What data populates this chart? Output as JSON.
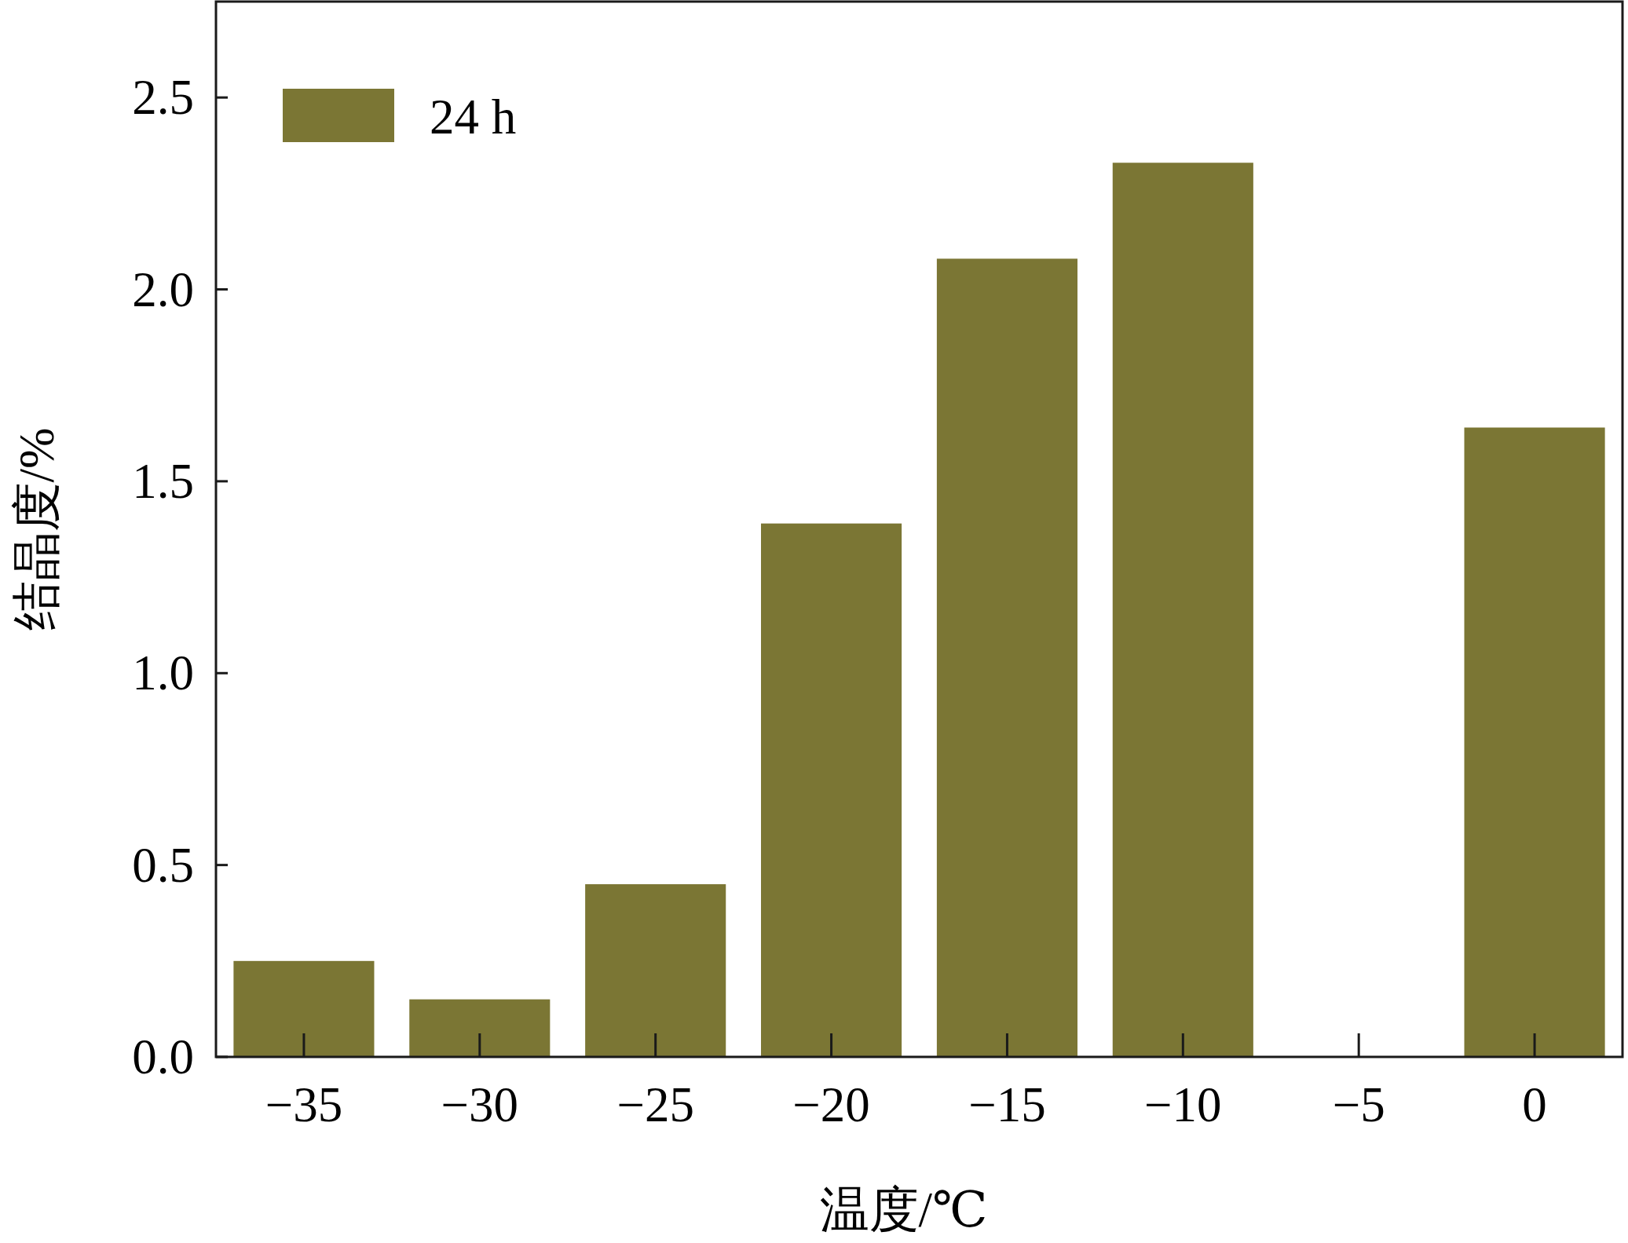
{
  "chart_data": {
    "type": "bar",
    "xlabel": "温度/℃",
    "ylabel": "结晶度/%",
    "categories": [
      "−35",
      "−30",
      "−25",
      "−20",
      "−15",
      "−10",
      "−5",
      "0"
    ],
    "series": [
      {
        "name": "24 h",
        "color": "#7b7634",
        "values": [
          0.25,
          0.15,
          0.45,
          1.39,
          2.08,
          2.33,
          null,
          1.64
        ]
      }
    ],
    "ylim": [
      0,
      2.75
    ],
    "yticks": [
      {
        "value": 0,
        "label": "0.0"
      },
      0.5,
      {
        "value": 1,
        "label": "1.0"
      },
      1.5,
      {
        "value": 2,
        "label": "2.0"
      },
      2.5
    ],
    "legend": "top left"
  }
}
